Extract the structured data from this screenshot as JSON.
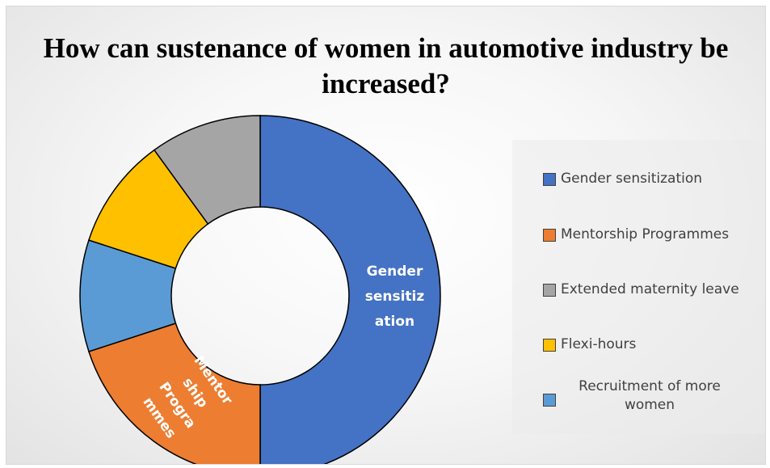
{
  "chart_data": {
    "type": "pie",
    "title": "How can sustenance of women in automotive industry be increased?",
    "legend_position": "right",
    "series": [
      {
        "name": "Gender sensitization",
        "value": 50,
        "color": "#4472C4",
        "label": "Gender sensitization"
      },
      {
        "name": "Mentorship Programmes",
        "value": 20,
        "color": "#ED7D31",
        "label": "Mentorship Programmes"
      },
      {
        "name": "Recruitment of more women",
        "value": 10,
        "color": "#5B9BD5",
        "label": ""
      },
      {
        "name": "Flexi-hours",
        "value": 10,
        "color": "#FFC000",
        "label": ""
      },
      {
        "name": "Extended maternity leave",
        "value": 10,
        "color": "#A5A5A5",
        "label": ""
      }
    ],
    "legend": [
      {
        "name": "Gender sensitization",
        "color": "#4472C4"
      },
      {
        "name": "Mentorship Programmes",
        "color": "#ED7D31"
      },
      {
        "name": "Extended maternity leave",
        "color": "#A5A5A5"
      },
      {
        "name": "Flexi-hours",
        "color": "#FFC000"
      },
      {
        "name": "Recruitment of more women",
        "color": "#5B9BD5"
      }
    ]
  }
}
